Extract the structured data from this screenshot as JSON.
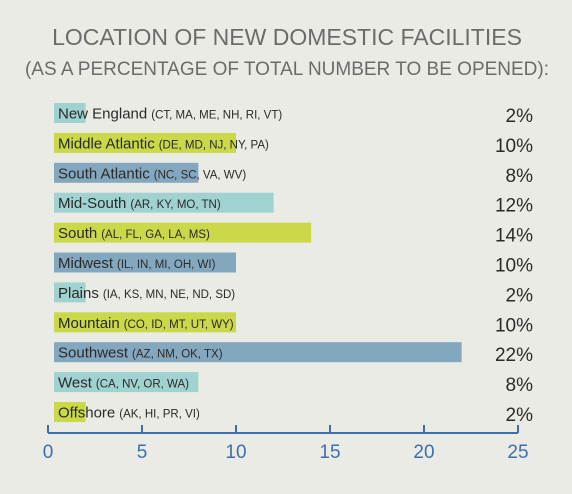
{
  "chart_data": {
    "type": "bar",
    "orientation": "horizontal",
    "title": "LOCATION OF NEW DOMESTIC FACILITIES",
    "subtitle": "(AS A PERCENTAGE OF TOTAL NUMBER TO BE OPENED):",
    "categories": [
      {
        "name": "New England",
        "states": "(CT, MA, ME, NH, RI, VT)"
      },
      {
        "name": "Middle Atlantic",
        "states": "(DE, MD, NJ, NY, PA)"
      },
      {
        "name": "South Atlantic",
        "states": "(NC, SC, VA, WV)"
      },
      {
        "name": "Mid-South",
        "states": "(AR, KY, MO, TN)"
      },
      {
        "name": "South",
        "states": "(AL, FL, GA, LA, MS)"
      },
      {
        "name": "Midwest",
        "states": "(IL, IN, MI, OH, WI)"
      },
      {
        "name": "Plains",
        "states": "(IA, KS, MN, NE, ND, SD)"
      },
      {
        "name": "Mountain",
        "states": "(CO, ID, MT, UT, WY)"
      },
      {
        "name": "Southwest",
        "states": "(AZ, NM, OK, TX)"
      },
      {
        "name": "West",
        "states": "(CA, NV, OR, WA)"
      },
      {
        "name": "Offshore",
        "states": "(AK, HI, PR, VI)"
      }
    ],
    "values": [
      2,
      10,
      8,
      12,
      14,
      10,
      2,
      10,
      22,
      8,
      2
    ],
    "value_labels": [
      "2%",
      "10%",
      "8%",
      "12%",
      "14%",
      "10%",
      "2%",
      "10%",
      "22%",
      "8%",
      "2%"
    ],
    "bar_colors": [
      "#9fd2d0",
      "#cad84a",
      "#84a7c0",
      "#9fd2d0",
      "#cad84a",
      "#84a7c0",
      "#9fd2d0",
      "#cad84a",
      "#84a7c0",
      "#9fd2d0",
      "#cad84a"
    ],
    "xlim": [
      0,
      25
    ],
    "xticks": [
      0,
      5,
      10,
      15,
      20,
      25
    ],
    "xlabel": "",
    "ylabel": "",
    "grid": false,
    "axis_color": "#3c6fb0",
    "background": "#ebebe5"
  }
}
